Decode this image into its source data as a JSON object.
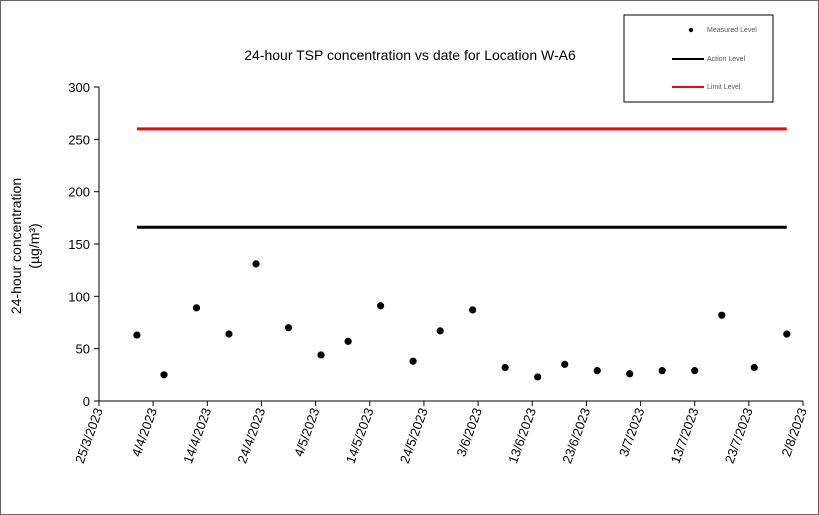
{
  "chart_data": {
    "type": "scatter",
    "title": "24-hour TSP concentration vs date for Location W-A6",
    "ylabel_line1": "24-hour concentration",
    "ylabel_line2": "(µg/m³)",
    "xlabel": "",
    "ylim": [
      0,
      300
    ],
    "yticks": [
      0,
      50,
      100,
      150,
      200,
      250,
      300
    ],
    "xlim": [
      "2023-03-25",
      "2023-08-02"
    ],
    "xticks": [
      "25/3/2023",
      "4/4/2023",
      "14/4/2023",
      "24/4/2023",
      "4/5/2023",
      "14/5/2023",
      "24/5/2023",
      "3/6/2023",
      "13/6/2023",
      "23/6/2023",
      "3/7/2023",
      "13/7/2023",
      "23/7/2023",
      "2/8/2023"
    ],
    "grid": false,
    "legend_position": "top-right",
    "series": [
      {
        "name": "Measured Level",
        "kind": "scatter",
        "color": "#000000",
        "points": [
          {
            "x": "2023-04-01",
            "y": 63
          },
          {
            "x": "2023-04-06",
            "y": 25
          },
          {
            "x": "2023-04-12",
            "y": 89
          },
          {
            "x": "2023-04-18",
            "y": 64
          },
          {
            "x": "2023-04-23",
            "y": 131
          },
          {
            "x": "2023-04-29",
            "y": 70
          },
          {
            "x": "2023-05-05",
            "y": 44
          },
          {
            "x": "2023-05-10",
            "y": 57
          },
          {
            "x": "2023-05-16",
            "y": 91
          },
          {
            "x": "2023-05-22",
            "y": 38
          },
          {
            "x": "2023-05-27",
            "y": 67
          },
          {
            "x": "2023-06-02",
            "y": 87
          },
          {
            "x": "2023-06-08",
            "y": 32
          },
          {
            "x": "2023-06-14",
            "y": 23
          },
          {
            "x": "2023-06-19",
            "y": 35
          },
          {
            "x": "2023-06-25",
            "y": 29
          },
          {
            "x": "2023-07-01",
            "y": 26
          },
          {
            "x": "2023-07-07",
            "y": 29
          },
          {
            "x": "2023-07-13",
            "y": 29
          },
          {
            "x": "2023-07-18",
            "y": 82
          },
          {
            "x": "2023-07-24",
            "y": 32
          },
          {
            "x": "2023-07-30",
            "y": 64
          }
        ]
      },
      {
        "name": "Action Level",
        "kind": "line",
        "color": "#000000",
        "x": [
          "2023-04-01",
          "2023-07-30"
        ],
        "y": [
          166,
          166
        ]
      },
      {
        "name": "Limit Level",
        "kind": "line",
        "color": "#ff0000",
        "x": [
          "2023-04-01",
          "2023-07-30"
        ],
        "y": [
          260,
          260
        ]
      }
    ]
  }
}
